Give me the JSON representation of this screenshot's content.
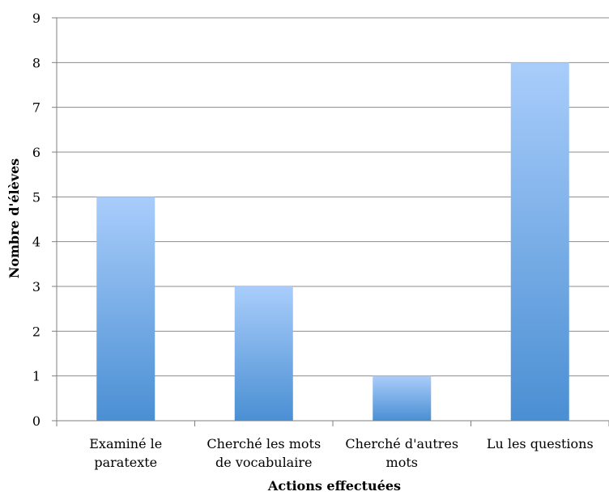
{
  "chart_data": {
    "type": "bar",
    "title": "",
    "xlabel": "Actions effectuées",
    "ylabel": "Nombre d'élèves",
    "categories": [
      [
        "Examiné le",
        "paratexte"
      ],
      [
        "Cherché les mots",
        "de vocabulaire"
      ],
      [
        "Cherché d'autres",
        "mots"
      ],
      [
        "Lu les questions"
      ]
    ],
    "values": [
      5,
      3,
      1,
      8
    ],
    "ylim": [
      0,
      9
    ],
    "yticks": [
      "0",
      "1",
      "2",
      "3",
      "4",
      "5",
      "6",
      "7",
      "8",
      "9"
    ],
    "grid": true,
    "legend": "none",
    "colors": {
      "bar_top": "#a9cdfb",
      "bar_bottom": "#4a8fd3",
      "grid": "#8c8c8c",
      "axis": "#7f7f7f"
    }
  }
}
